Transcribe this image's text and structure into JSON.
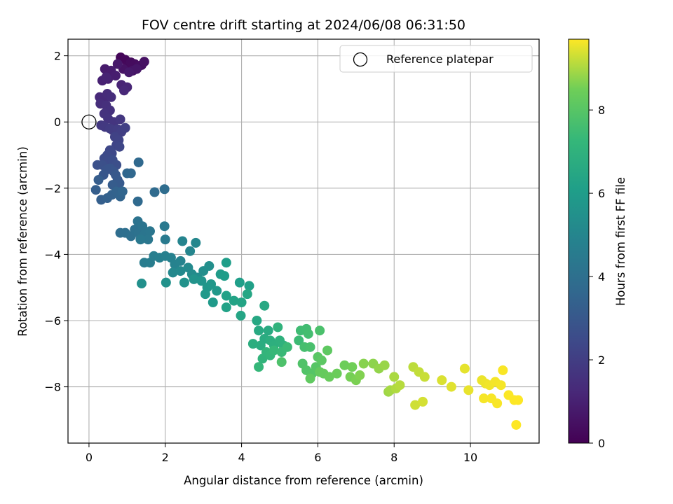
{
  "chart_data": {
    "type": "scatter",
    "title": "FOV centre drift starting at 2024/06/08 06:31:50",
    "xlabel": "Angular distance from reference (arcmin)",
    "ylabel": "Rotation from reference (arcmin)",
    "xlim": [
      -0.55,
      11.8
    ],
    "ylim": [
      -9.7,
      2.5
    ],
    "xticks": [
      0,
      2,
      4,
      6,
      8,
      10
    ],
    "yticks": [
      2,
      0,
      -2,
      -4,
      -6,
      -8
    ],
    "grid": true,
    "legend": {
      "location": "upper-right",
      "entries": [
        "Reference platepar"
      ]
    },
    "colorbar": {
      "label": "Hours from first FF file",
      "range": [
        0,
        9.7
      ],
      "ticks": [
        0,
        2,
        4,
        6,
        8
      ],
      "colormap": "viridis"
    },
    "reference_point": {
      "x": 0,
      "y": 0
    },
    "points": [
      [
        0.83,
        1.95,
        0.15
      ],
      [
        0.95,
        1.88,
        0.2
      ],
      [
        1.02,
        1.7,
        0.25
      ],
      [
        1.1,
        1.8,
        0.3
      ],
      [
        1.2,
        1.75,
        0.35
      ],
      [
        1.3,
        1.68,
        0.4
      ],
      [
        1.38,
        1.72,
        0.45
      ],
      [
        1.45,
        1.82,
        0.5
      ],
      [
        0.9,
        1.6,
        0.55
      ],
      [
        1.15,
        1.55,
        0.6
      ],
      [
        1.25,
        1.6,
        0.65
      ],
      [
        0.75,
        1.75,
        0.7
      ],
      [
        1.05,
        1.5,
        0.75
      ],
      [
        0.42,
        1.6,
        0.8
      ],
      [
        0.58,
        1.55,
        0.85
      ],
      [
        0.7,
        1.4,
        0.9
      ],
      [
        0.5,
        1.3,
        0.95
      ],
      [
        0.35,
        1.25,
        1.0
      ],
      [
        0.45,
        1.35,
        1.05
      ],
      [
        0.85,
        1.12,
        1.1
      ],
      [
        1.0,
        1.05,
        1.15
      ],
      [
        0.92,
        0.95,
        1.2
      ],
      [
        0.28,
        0.75,
        1.25
      ],
      [
        0.38,
        0.7,
        1.3
      ],
      [
        0.48,
        0.85,
        1.35
      ],
      [
        0.58,
        0.75,
        1.4
      ],
      [
        0.3,
        0.55,
        1.45
      ],
      [
        0.45,
        0.5,
        1.5
      ],
      [
        0.55,
        0.35,
        1.55
      ],
      [
        0.4,
        0.25,
        1.6
      ],
      [
        0.5,
        0.1,
        1.65
      ],
      [
        0.65,
        0.0,
        1.7
      ],
      [
        0.82,
        0.08,
        1.75
      ],
      [
        0.32,
        -0.1,
        1.8
      ],
      [
        0.42,
        -0.15,
        1.85
      ],
      [
        0.55,
        -0.2,
        1.9
      ],
      [
        0.62,
        -0.25,
        1.95
      ],
      [
        0.75,
        -0.22,
        2.0
      ],
      [
        0.85,
        -0.3,
        2.05
      ],
      [
        0.95,
        -0.18,
        2.1
      ],
      [
        0.68,
        -0.45,
        2.15
      ],
      [
        0.78,
        -0.55,
        2.2
      ],
      [
        0.72,
        -0.7,
        2.25
      ],
      [
        0.8,
        -0.75,
        2.3
      ],
      [
        0.55,
        -0.85,
        2.35
      ],
      [
        0.6,
        -0.95,
        2.4
      ],
      [
        0.48,
        -1.0,
        2.45
      ],
      [
        0.4,
        -1.1,
        2.5
      ],
      [
        0.5,
        -1.2,
        2.55
      ],
      [
        0.62,
        -1.15,
        2.6
      ],
      [
        0.72,
        -1.3,
        2.65
      ],
      [
        0.35,
        -1.3,
        2.7
      ],
      [
        0.22,
        -1.3,
        2.75
      ],
      [
        0.45,
        -1.45,
        2.8
      ],
      [
        0.55,
        -1.4,
        2.85
      ],
      [
        0.65,
        -1.5,
        2.9
      ],
      [
        0.38,
        -1.6,
        2.95
      ],
      [
        0.7,
        -1.6,
        3.0
      ],
      [
        0.75,
        -1.75,
        3.05
      ],
      [
        0.8,
        -1.85,
        3.1
      ],
      [
        0.62,
        -1.9,
        3.15
      ],
      [
        0.25,
        -1.75,
        3.2
      ],
      [
        0.18,
        -2.05,
        3.25
      ],
      [
        0.32,
        -2.35,
        3.3
      ],
      [
        0.48,
        -2.3,
        3.35
      ],
      [
        0.6,
        -2.2,
        3.4
      ],
      [
        0.72,
        -2.1,
        3.45
      ],
      [
        0.82,
        -2.25,
        3.5
      ],
      [
        0.88,
        -2.1,
        3.55
      ],
      [
        1.0,
        -1.55,
        3.6
      ],
      [
        1.1,
        -1.55,
        3.65
      ],
      [
        1.3,
        -1.22,
        3.7
      ],
      [
        1.28,
        -2.4,
        3.75
      ],
      [
        1.72,
        -2.12,
        3.8
      ],
      [
        1.98,
        -2.03,
        3.85
      ],
      [
        0.82,
        -3.35,
        3.9
      ],
      [
        0.95,
        -3.35,
        3.95
      ],
      [
        1.1,
        -3.45,
        4.0
      ],
      [
        1.2,
        -3.25,
        4.05
      ],
      [
        1.3,
        -3.35,
        4.1
      ],
      [
        1.28,
        -3.0,
        4.15
      ],
      [
        1.4,
        -3.15,
        4.2
      ],
      [
        1.45,
        -3.4,
        4.25
      ],
      [
        1.6,
        -3.3,
        4.3
      ],
      [
        1.55,
        -3.55,
        4.35
      ],
      [
        1.35,
        -3.55,
        4.4
      ],
      [
        1.98,
        -3.15,
        4.45
      ],
      [
        2.0,
        -3.55,
        4.5
      ],
      [
        1.45,
        -4.25,
        4.55
      ],
      [
        1.6,
        -4.25,
        4.6
      ],
      [
        1.7,
        -4.05,
        4.65
      ],
      [
        1.85,
        -4.1,
        4.7
      ],
      [
        2.0,
        -4.05,
        4.75
      ],
      [
        2.15,
        -4.1,
        4.8
      ],
      [
        2.25,
        -4.3,
        4.85
      ],
      [
        2.4,
        -4.2,
        4.9
      ],
      [
        2.45,
        -3.6,
        4.95
      ],
      [
        2.65,
        -3.9,
        5.0
      ],
      [
        2.8,
        -3.65,
        5.05
      ],
      [
        2.2,
        -4.55,
        5.1
      ],
      [
        2.4,
        -4.5,
        5.15
      ],
      [
        2.6,
        -4.4,
        5.2
      ],
      [
        2.7,
        -4.6,
        5.25
      ],
      [
        2.85,
        -4.7,
        5.3
      ],
      [
        3.0,
        -4.5,
        5.35
      ],
      [
        3.15,
        -4.35,
        5.4
      ],
      [
        1.38,
        -4.88,
        5.45
      ],
      [
        2.02,
        -4.85,
        5.5
      ],
      [
        2.5,
        -4.85,
        5.55
      ],
      [
        2.75,
        -4.75,
        5.6
      ],
      [
        2.95,
        -4.8,
        5.65
      ],
      [
        3.1,
        -5.0,
        5.7
      ],
      [
        3.2,
        -4.9,
        5.75
      ],
      [
        3.35,
        -5.1,
        5.8
      ],
      [
        3.05,
        -5.2,
        5.85
      ],
      [
        3.25,
        -5.45,
        5.9
      ],
      [
        3.45,
        -4.6,
        5.95
      ],
      [
        3.55,
        -4.65,
        6.0
      ],
      [
        3.6,
        -4.25,
        6.05
      ],
      [
        3.95,
        -4.85,
        6.1
      ],
      [
        4.2,
        -4.95,
        6.15
      ],
      [
        3.6,
        -5.25,
        6.2
      ],
      [
        3.6,
        -5.6,
        6.25
      ],
      [
        3.8,
        -5.4,
        6.3
      ],
      [
        4.0,
        -5.45,
        6.35
      ],
      [
        3.98,
        -5.85,
        6.4
      ],
      [
        4.15,
        -5.2,
        6.45
      ],
      [
        4.4,
        -6.0,
        6.5
      ],
      [
        4.6,
        -5.55,
        6.55
      ],
      [
        4.45,
        -6.3,
        6.6
      ],
      [
        4.7,
        -6.3,
        6.65
      ],
      [
        4.6,
        -6.55,
        6.7
      ],
      [
        4.5,
        -6.75,
        6.75
      ],
      [
        4.3,
        -6.7,
        6.8
      ],
      [
        4.75,
        -6.6,
        6.85
      ],
      [
        4.85,
        -6.75,
        6.9
      ],
      [
        5.0,
        -6.6,
        6.95
      ],
      [
        5.1,
        -6.75,
        7.0
      ],
      [
        4.95,
        -6.2,
        7.05
      ],
      [
        4.55,
        -7.15,
        7.1
      ],
      [
        4.65,
        -6.95,
        7.15
      ],
      [
        4.75,
        -7.05,
        7.2
      ],
      [
        4.45,
        -7.4,
        7.25
      ],
      [
        4.85,
        -6.9,
        7.3
      ],
      [
        5.05,
        -6.95,
        7.35
      ],
      [
        5.2,
        -6.8,
        7.4
      ],
      [
        5.5,
        -6.6,
        7.45
      ],
      [
        5.55,
        -6.3,
        7.5
      ],
      [
        5.7,
        -6.25,
        7.55
      ],
      [
        5.75,
        -6.4,
        7.6
      ],
      [
        5.65,
        -6.8,
        7.65
      ],
      [
        5.8,
        -6.8,
        7.7
      ],
      [
        6.05,
        -6.3,
        7.75
      ],
      [
        5.05,
        -7.25,
        7.8
      ],
      [
        5.6,
        -7.3,
        7.85
      ],
      [
        5.7,
        -7.5,
        7.9
      ],
      [
        5.85,
        -7.6,
        7.95
      ],
      [
        5.95,
        -7.4,
        8.0
      ],
      [
        6.0,
        -7.1,
        8.05
      ],
      [
        6.1,
        -7.2,
        8.1
      ],
      [
        6.25,
        -6.9,
        8.15
      ],
      [
        5.8,
        -7.75,
        8.2
      ],
      [
        6.05,
        -7.55,
        8.25
      ],
      [
        6.15,
        -7.6,
        8.3
      ],
      [
        6.3,
        -7.7,
        8.35
      ],
      [
        6.5,
        -7.6,
        8.4
      ],
      [
        6.7,
        -7.35,
        8.45
      ],
      [
        6.9,
        -7.4,
        8.5
      ],
      [
        6.85,
        -7.7,
        8.55
      ],
      [
        7.0,
        -7.8,
        8.6
      ],
      [
        7.1,
        -7.65,
        8.65
      ],
      [
        7.2,
        -7.3,
        8.7
      ],
      [
        7.45,
        -7.3,
        8.75
      ],
      [
        7.6,
        -7.45,
        8.8
      ],
      [
        7.75,
        -7.35,
        8.85
      ],
      [
        7.85,
        -8.15,
        8.9
      ],
      [
        7.9,
        -8.1,
        8.95
      ],
      [
        8.0,
        -7.7,
        9.0
      ],
      [
        8.05,
        -8.05,
        9.05
      ],
      [
        8.15,
        -7.95,
        9.1
      ],
      [
        8.5,
        -7.4,
        9.15
      ],
      [
        8.65,
        -7.55,
        9.2
      ],
      [
        8.8,
        -7.7,
        9.25
      ],
      [
        8.55,
        -8.55,
        9.3
      ],
      [
        8.75,
        -8.45,
        9.35
      ],
      [
        9.25,
        -7.8,
        9.4
      ],
      [
        9.5,
        -8.0,
        9.45
      ],
      [
        9.85,
        -7.45,
        9.5
      ],
      [
        9.95,
        -8.1,
        9.52
      ],
      [
        10.3,
        -7.8,
        9.55
      ],
      [
        10.4,
        -7.9,
        9.57
      ],
      [
        10.5,
        -7.95,
        9.6
      ],
      [
        10.65,
        -7.85,
        9.62
      ],
      [
        10.8,
        -7.95,
        9.63
      ],
      [
        10.35,
        -8.35,
        9.64
      ],
      [
        10.55,
        -8.35,
        9.65
      ],
      [
        10.7,
        -8.5,
        9.66
      ],
      [
        10.85,
        -7.5,
        9.67
      ],
      [
        11.0,
        -8.25,
        9.68
      ],
      [
        11.15,
        -8.4,
        9.69
      ],
      [
        11.25,
        -8.4,
        9.7
      ],
      [
        11.2,
        -9.15,
        9.7
      ]
    ]
  }
}
